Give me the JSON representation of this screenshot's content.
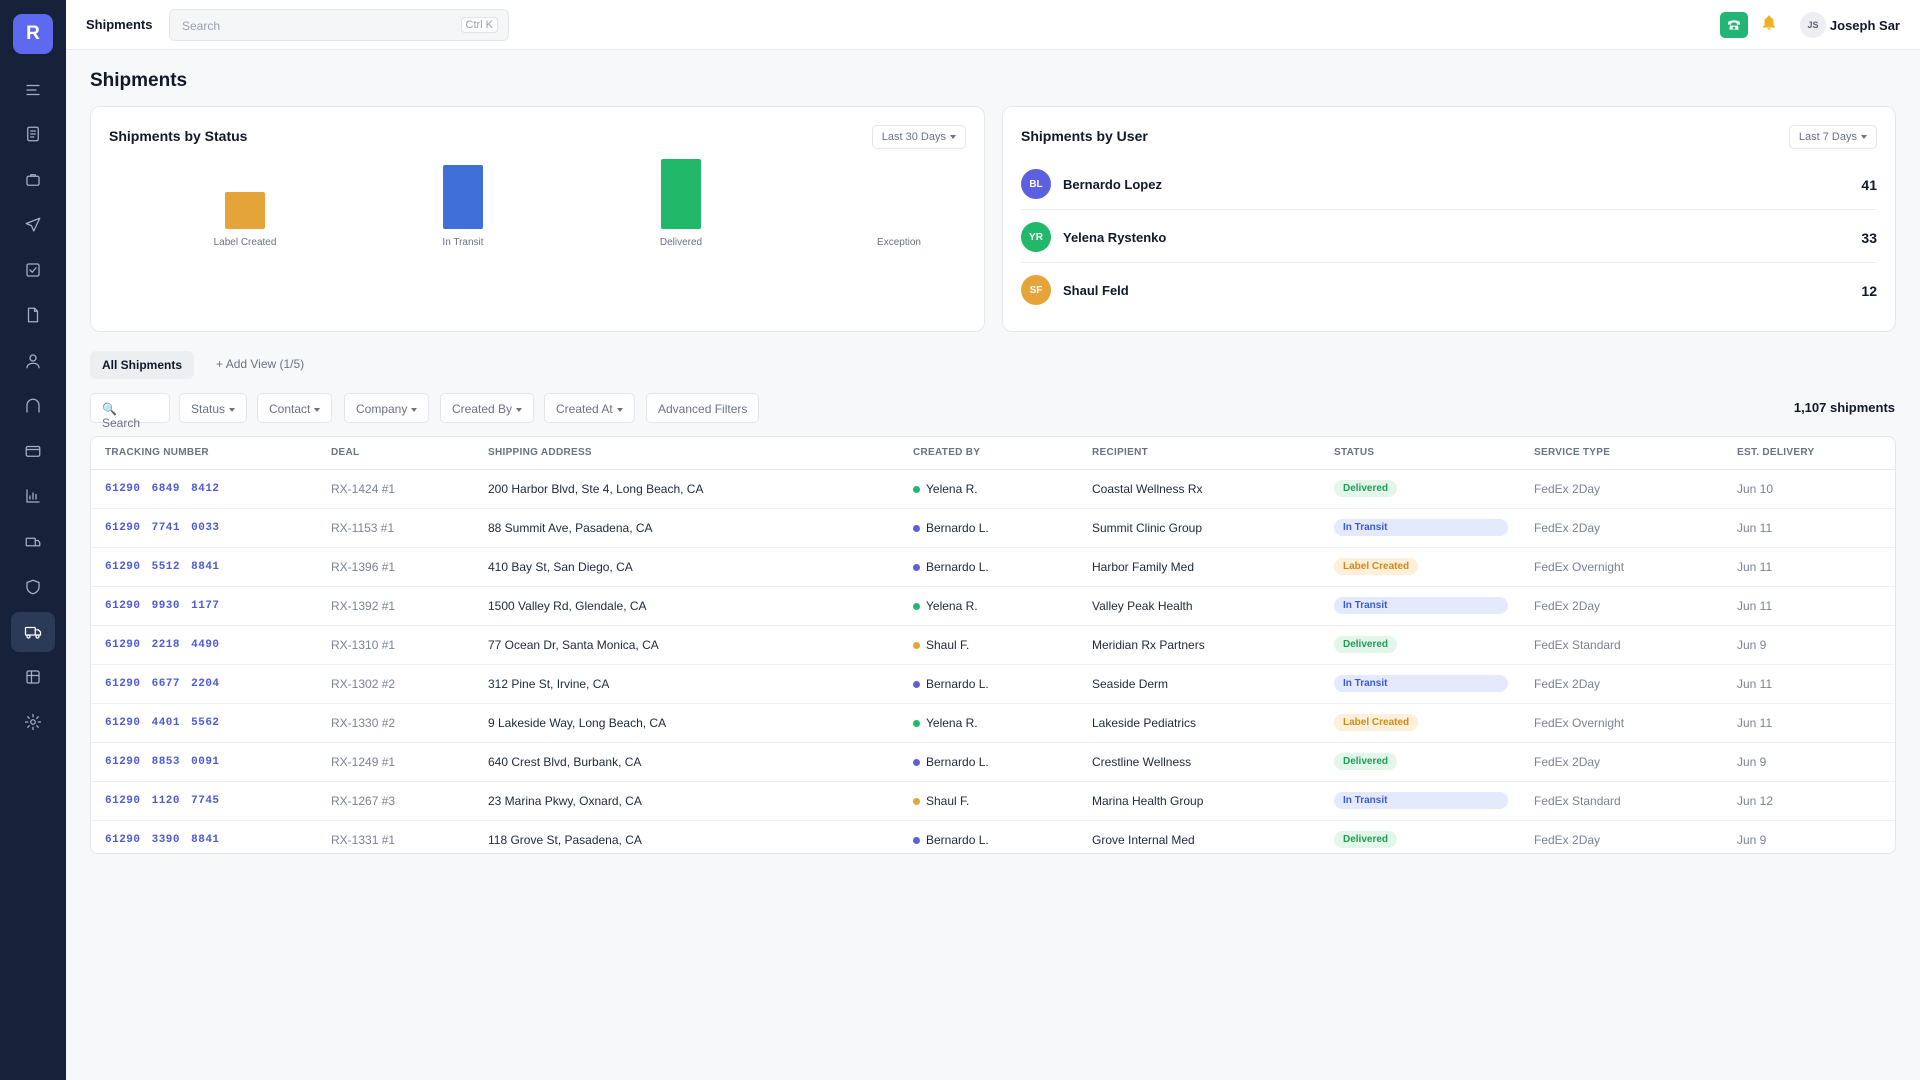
{
  "app": {
    "logo_letter": "R"
  },
  "sidebar": {
    "items": [
      {
        "icon": "menu-icon"
      },
      {
        "icon": "document-icon"
      },
      {
        "icon": "briefcase-icon"
      },
      {
        "icon": "send-icon"
      },
      {
        "icon": "checkbox-icon"
      },
      {
        "icon": "file-icon"
      },
      {
        "icon": "user-icon"
      },
      {
        "icon": "arch-icon"
      },
      {
        "icon": "card-icon"
      },
      {
        "icon": "chart-icon"
      },
      {
        "icon": "truck-box-icon"
      },
      {
        "icon": "shield-icon"
      },
      {
        "icon": "truck-icon",
        "active": true
      },
      {
        "icon": "table-icon"
      },
      {
        "icon": "gear-icon"
      }
    ]
  },
  "topbar": {
    "title": "Shipments",
    "search_placeholder": "Search",
    "shortcut": "Ctrl K",
    "user_initials": "JS",
    "user_name": "Joseph Sar"
  },
  "page": {
    "title": "Shipments"
  },
  "status_card": {
    "title": "Shipments by Status",
    "range": "Last 30 Days"
  },
  "chart_data": {
    "type": "bar",
    "categories": [
      "Label Created",
      "In Transit",
      "Delivered",
      "Exception"
    ],
    "values": [
      31,
      53,
      58,
      0
    ],
    "colors": [
      "#e5a43a",
      "#3f6fd8",
      "#22b86a",
      "#9ca3af"
    ],
    "title": "Shipments by Status",
    "xlabel": "",
    "ylabel": "",
    "grid": false
  },
  "user_card": {
    "title": "Shipments by User",
    "range": "Last 7 Days",
    "users": [
      {
        "initials": "BL",
        "name": "Bernardo Lopez",
        "count": "41",
        "color": "#5b5fe0"
      },
      {
        "initials": "YR",
        "name": "Yelena Rystenko",
        "count": "33",
        "color": "#22b86a"
      },
      {
        "initials": "SF",
        "name": "Shaul Feld",
        "count": "12",
        "color": "#e5a43a"
      }
    ]
  },
  "views": {
    "active": "All Shipments",
    "add": "Add View (1/5)"
  },
  "filters": {
    "search": "Search",
    "status": "Status",
    "contact": "Contact",
    "company": "Company",
    "created_by": "Created By",
    "created_at": "Created At",
    "advanced": "Advanced Filters"
  },
  "count_label": "1,107 shipments",
  "table": {
    "headers": [
      "TRACKING NUMBER",
      "DEAL",
      "SHIPPING ADDRESS",
      "CREATED BY",
      "RECIPIENT",
      "STATUS",
      "SERVICE TYPE",
      "EST. DELIVERY"
    ],
    "rows": [
      {
        "tracking": "61290 6849 8412",
        "deal": "RX-1424 #1",
        "address": "200 Harbor Blvd, Ste 4, Long Beach, CA",
        "created_by": "Yelena R.",
        "creator_color": "#22b86a",
        "recipient": "Coastal Wellness Rx",
        "status": "Delivered",
        "service": "FedEx 2Day",
        "delivery": "Jun 10"
      },
      {
        "tracking": "61290 7741 0033",
        "deal": "RX-1153 #1",
        "address": "88 Summit Ave, Pasadena, CA",
        "created_by": "Bernardo L.",
        "creator_color": "#5b5fe0",
        "recipient": "Summit Clinic Group",
        "status": "In Transit",
        "service": "FedEx 2Day",
        "delivery": "Jun 11"
      },
      {
        "tracking": "61290 5512 8841",
        "deal": "RX-1396 #1",
        "address": "410 Bay St, San Diego, CA",
        "created_by": "Bernardo L.",
        "creator_color": "#5b5fe0",
        "recipient": "Harbor Family Med",
        "status": "Label Created",
        "service": "FedEx Overnight",
        "delivery": "Jun 11"
      },
      {
        "tracking": "61290 9930 1177",
        "deal": "RX-1392 #1",
        "address": "1500 Valley Rd, Glendale, CA",
        "created_by": "Yelena R.",
        "creator_color": "#22b86a",
        "recipient": "Valley Peak Health",
        "status": "In Transit",
        "service": "FedEx 2Day",
        "delivery": "Jun 11"
      },
      {
        "tracking": "61290 2218 4490",
        "deal": "RX-1310 #1",
        "address": "77 Ocean Dr, Santa Monica, CA",
        "created_by": "Shaul F.",
        "creator_color": "#e5a43a",
        "recipient": "Meridian Rx Partners",
        "status": "Delivered",
        "service": "FedEx Standard",
        "delivery": "Jun 9"
      },
      {
        "tracking": "61290 6677 2204",
        "deal": "RX-1302 #2",
        "address": "312 Pine St, Irvine, CA",
        "created_by": "Bernardo L.",
        "creator_color": "#5b5fe0",
        "recipient": "Seaside Derm",
        "status": "In Transit",
        "service": "FedEx 2Day",
        "delivery": "Jun 11"
      },
      {
        "tracking": "61290 4401 5562",
        "deal": "RX-1330 #2",
        "address": "9 Lakeside Way, Long Beach, CA",
        "created_by": "Yelena R.",
        "creator_color": "#22b86a",
        "recipient": "Lakeside Pediatrics",
        "status": "Label Created",
        "service": "FedEx Overnight",
        "delivery": "Jun 11"
      },
      {
        "tracking": "61290 8853 0091",
        "deal": "RX-1249 #1",
        "address": "640 Crest Blvd, Burbank, CA",
        "created_by": "Bernardo L.",
        "creator_color": "#5b5fe0",
        "recipient": "Crestline Wellness",
        "status": "Delivered",
        "service": "FedEx 2Day",
        "delivery": "Jun 9"
      },
      {
        "tracking": "61290 1120 7745",
        "deal": "RX-1267 #3",
        "address": "23 Marina Pkwy, Oxnard, CA",
        "created_by": "Shaul F.",
        "creator_color": "#e5a43a",
        "recipient": "Marina Health Group",
        "status": "In Transit",
        "service": "FedEx Standard",
        "delivery": "Jun 12"
      },
      {
        "tracking": "61290 3390 8841",
        "deal": "RX-1331 #1",
        "address": "118 Grove St, Pasadena, CA",
        "created_by": "Bernardo L.",
        "creator_color": "#5b5fe0",
        "recipient": "Grove Internal Med",
        "status": "Delivered",
        "service": "FedEx 2Day",
        "delivery": "Jun 9"
      }
    ]
  }
}
